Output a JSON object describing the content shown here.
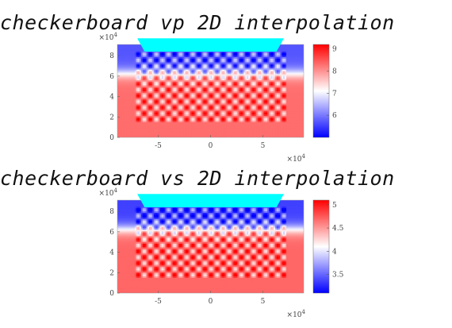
{
  "chart_data": [
    {
      "type": "heatmap",
      "title": "checkerboard vp 2D interpolation",
      "x_ticks": [
        "-5",
        "0",
        "5"
      ],
      "x_tick_values": [
        -5,
        0,
        5
      ],
      "xlim": [
        -8.9,
        8.9
      ],
      "x_exponent": "×10",
      "x_exponent_power": "4",
      "y_ticks": [
        "0",
        "2",
        "4",
        "6",
        "8"
      ],
      "y_tick_values": [
        0,
        2,
        4,
        6,
        8
      ],
      "ylim": [
        0,
        9.1
      ],
      "y_exponent": "×10",
      "y_exponent_power": "4",
      "colorbar_ticks": [
        "6",
        "7",
        "8",
        "9"
      ],
      "colorbar_tick_values": [
        6,
        7,
        8,
        9
      ],
      "colorbar_range": [
        5.0,
        9.2
      ],
      "colormap": [
        "#0000ff",
        "#ffffff",
        "#ff0000"
      ],
      "top_band_color": "#00ffff",
      "background_low": 8.3,
      "background_high": 5.7,
      "checker_amplitude": 1.0
    },
    {
      "type": "heatmap",
      "title": "checkerboard vs 2D interpolation",
      "x_ticks": [
        "-5",
        "0",
        "5"
      ],
      "x_tick_values": [
        -5,
        0,
        5
      ],
      "xlim": [
        -8.9,
        8.9
      ],
      "x_exponent": "×10",
      "x_exponent_power": "4",
      "y_ticks": [
        "0",
        "2",
        "4",
        "6",
        "8"
      ],
      "y_tick_values": [
        0,
        2,
        4,
        6,
        8
      ],
      "ylim": [
        0,
        9.1
      ],
      "y_exponent": "×10",
      "y_exponent_power": "4",
      "colorbar_ticks": [
        "3.5",
        "4",
        "4.5",
        "5"
      ],
      "colorbar_tick_values": [
        3.5,
        4,
        4.5,
        5
      ],
      "colorbar_range": [
        3.1,
        5.1
      ],
      "colormap": [
        "#0000ff",
        "#ffffff",
        "#ff0000"
      ],
      "top_band_color": "#00ffff",
      "background_low": 4.7,
      "background_high": 3.35,
      "checker_amplitude": 0.5
    }
  ]
}
